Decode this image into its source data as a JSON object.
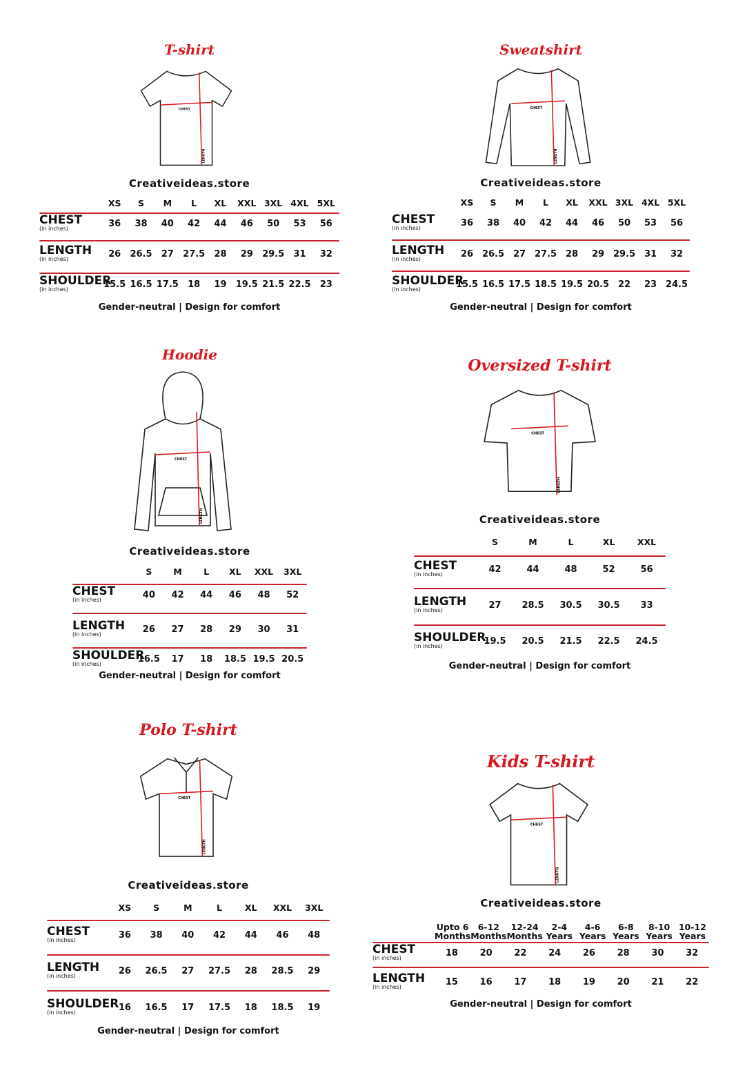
{
  "accent_color": "#d7191f",
  "charts": [
    {
      "title": "T-shirt",
      "garment": "tshirt-icon",
      "chest_label": "CHEST",
      "length_label": "LENGTH",
      "brand": "Creativeideas.store",
      "sizes": [
        "XS",
        "S",
        "M",
        "L",
        "XL",
        "XXL",
        "3XL",
        "4XL",
        "5XL"
      ],
      "rows": [
        {
          "label": "CHEST",
          "unit": "(in inches)",
          "values": [
            "36",
            "38",
            "40",
            "42",
            "44",
            "46",
            "50",
            "53",
            "56"
          ]
        },
        {
          "label": "LENGTH",
          "unit": "(in inches)",
          "values": [
            "26",
            "26.5",
            "27",
            "27.5",
            "28",
            "29",
            "29.5",
            "31",
            "32"
          ]
        },
        {
          "label": "SHOULDER",
          "unit": "(in inches)",
          "values": [
            "15.5",
            "16.5",
            "17.5",
            "18",
            "19",
            "19.5",
            "21.5",
            "22.5",
            "23"
          ]
        }
      ],
      "footer": "Gender-neutral | Design for comfort"
    },
    {
      "title": "Sweatshirt",
      "garment": "sweatshirt-icon",
      "chest_label": "CHEST",
      "length_label": "LENGTH",
      "brand": "Creativeideas.store",
      "sizes": [
        "XS",
        "S",
        "M",
        "L",
        "XL",
        "XXL",
        "3XL",
        "4XL",
        "5XL"
      ],
      "rows": [
        {
          "label": "CHEST",
          "unit": "(in inches)",
          "values": [
            "36",
            "38",
            "40",
            "42",
            "44",
            "46",
            "50",
            "53",
            "56"
          ]
        },
        {
          "label": "LENGTH",
          "unit": "(in inches)",
          "values": [
            "26",
            "26.5",
            "27",
            "27.5",
            "28",
            "29",
            "29.5",
            "31",
            "32"
          ]
        },
        {
          "label": "SHOULDER",
          "unit": "(in inches)",
          "values": [
            "15.5",
            "16.5",
            "17.5",
            "18.5",
            "19.5",
            "20.5",
            "22",
            "23",
            "24.5"
          ]
        }
      ],
      "footer": "Gender-neutral | Design for comfort"
    },
    {
      "title": "Hoodie",
      "garment": "hoodie-icon",
      "chest_label": "CHEST",
      "length_label": "LENGTH",
      "brand": "Creativeideas.store",
      "sizes": [
        "S",
        "M",
        "L",
        "XL",
        "XXL",
        "3XL"
      ],
      "rows": [
        {
          "label": "CHEST",
          "unit": "(in inches)",
          "values": [
            "40",
            "42",
            "44",
            "46",
            "48",
            "52"
          ]
        },
        {
          "label": "LENGTH",
          "unit": "(in inches)",
          "values": [
            "26",
            "27",
            "28",
            "29",
            "30",
            "31"
          ]
        },
        {
          "label": "SHOULDER",
          "unit": "(in inches)",
          "values": [
            "16.5",
            "17",
            "18",
            "18.5",
            "19.5",
            "20.5"
          ]
        }
      ],
      "footer": "Gender-neutral | Design for comfort"
    },
    {
      "title": "Oversized T-shirt",
      "garment": "oversized-tshirt-icon",
      "chest_label": "CHEST",
      "length_label": "LENGTH",
      "brand": "Creativeideas.store",
      "sizes": [
        "S",
        "M",
        "L",
        "XL",
        "XXL"
      ],
      "rows": [
        {
          "label": "CHEST",
          "unit": "(in inches)",
          "values": [
            "42",
            "44",
            "48",
            "52",
            "56"
          ]
        },
        {
          "label": "LENGTH",
          "unit": "(in inches)",
          "values": [
            "27",
            "28.5",
            "30.5",
            "30.5",
            "33"
          ]
        },
        {
          "label": "SHOULDER",
          "unit": "(in inches)",
          "values": [
            "19.5",
            "20.5",
            "21.5",
            "22.5",
            "24.5"
          ]
        }
      ],
      "footer": "Gender-neutral | Design for comfort"
    },
    {
      "title": "Polo T-shirt",
      "garment": "polo-shirt-icon",
      "chest_label": "CHEST",
      "length_label": "LENGTH",
      "brand": "Creativeideas.store",
      "sizes": [
        "XS",
        "S",
        "M",
        "L",
        "XL",
        "XXL",
        "3XL"
      ],
      "rows": [
        {
          "label": "CHEST",
          "unit": "(in inches)",
          "values": [
            "36",
            "38",
            "40",
            "42",
            "44",
            "46",
            "48"
          ]
        },
        {
          "label": "LENGTH",
          "unit": "(in inches)",
          "values": [
            "26",
            "26.5",
            "27",
            "27.5",
            "28",
            "28.5",
            "29"
          ]
        },
        {
          "label": "SHOULDER",
          "unit": "(in inches)",
          "values": [
            "16",
            "16.5",
            "17",
            "17.5",
            "18",
            "18.5",
            "19"
          ]
        }
      ],
      "footer": "Gender-neutral | Design for comfort"
    },
    {
      "title": "Kids T-shirt",
      "garment": "kids-tshirt-icon",
      "chest_label": "CHEST",
      "length_label": "LENGTH",
      "brand": "Creativeideas.store",
      "sizes": [
        "Upto 6 Months",
        "6-12 Months",
        "12-24 Months",
        "2-4 Years",
        "4-6 Years",
        "6-8 Years",
        "8-10 Years",
        "10-12 Years"
      ],
      "rows": [
        {
          "label": "CHEST",
          "unit": "(in inches)",
          "values": [
            "18",
            "20",
            "22",
            "24",
            "26",
            "28",
            "30",
            "32"
          ]
        },
        {
          "label": "LENGTH",
          "unit": "(in inches)",
          "values": [
            "15",
            "16",
            "17",
            "18",
            "19",
            "20",
            "21",
            "22"
          ]
        }
      ],
      "footer": "Gender-neutral | Design for comfort"
    }
  ]
}
